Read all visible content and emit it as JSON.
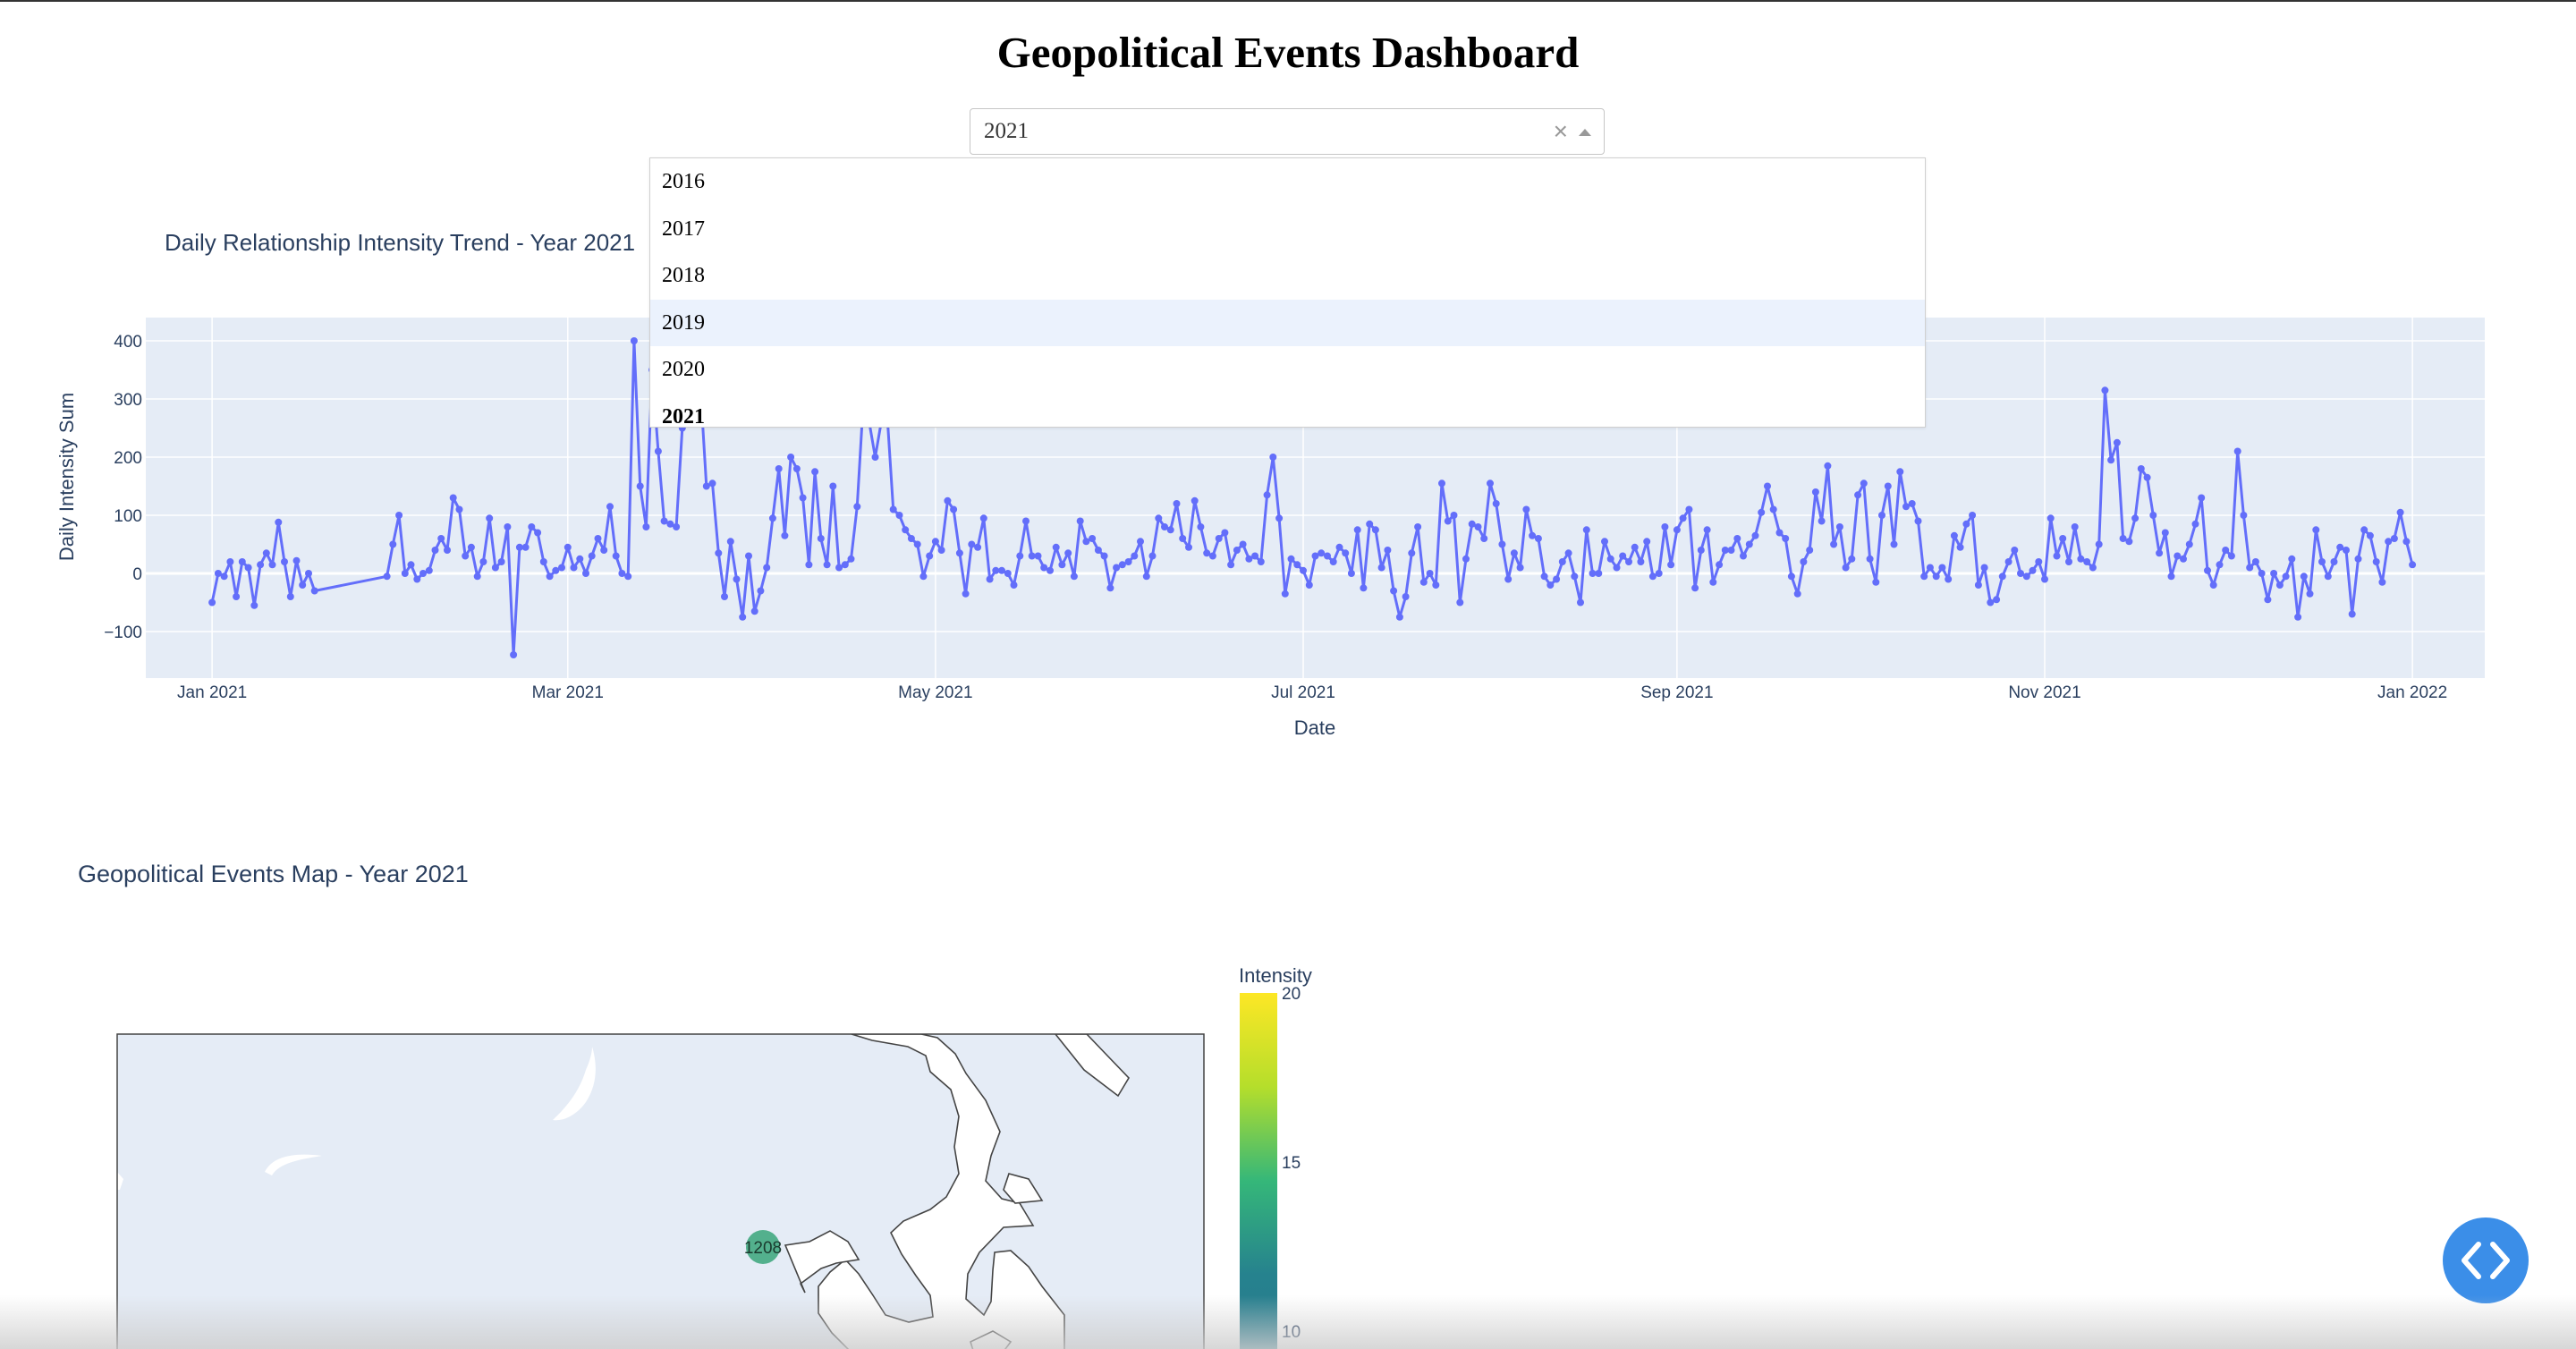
{
  "page": {
    "title": "Geopolitical Events Dashboard"
  },
  "year_select": {
    "value": "2021",
    "clear_symbol": "×",
    "options": [
      {
        "label": "2016",
        "state": "normal"
      },
      {
        "label": "2017",
        "state": "normal"
      },
      {
        "label": "2018",
        "state": "normal"
      },
      {
        "label": "2019",
        "state": "hovered"
      },
      {
        "label": "2020",
        "state": "normal"
      },
      {
        "label": "2021",
        "state": "selected"
      }
    ]
  },
  "colors": {
    "line": "#636efa",
    "plot_bg": "#e5ecf6",
    "land": "#e5ecf6",
    "button": "#3b8ee8"
  },
  "trend_chart": {
    "title": "Daily Relationship Intensity Trend - Year 2021",
    "xlabel": "Date",
    "ylabel": "Daily Intensity Sum",
    "chart_data": {
      "type": "line",
      "title": "Daily Relationship Intensity Trend - Year 2021",
      "xlabel": "Date",
      "ylabel": "Daily Intensity Sum",
      "xlim": [
        "2020-12-21",
        "2022-01-13"
      ],
      "ylim": [
        -180,
        440
      ],
      "x_ticks": [
        {
          "date": "2021-01-01",
          "label": "Jan 2021"
        },
        {
          "date": "2021-03-01",
          "label": "Mar 2021"
        },
        {
          "date": "2021-05-01",
          "label": "May 2021"
        },
        {
          "date": "2021-07-01",
          "label": "Jul 2021"
        },
        {
          "date": "2021-09-01",
          "label": "Sep 2021"
        },
        {
          "date": "2021-11-01",
          "label": "Nov 2021"
        },
        {
          "date": "2022-01-01",
          "label": "Jan 2022"
        }
      ],
      "y_ticks": [
        {
          "value": 400,
          "label": "400"
        },
        {
          "value": 300,
          "label": "300"
        },
        {
          "value": 200,
          "label": "200"
        },
        {
          "value": 100,
          "label": "100"
        },
        {
          "value": 0,
          "label": "0"
        },
        {
          "value": -100,
          "label": "−100"
        }
      ],
      "grid": true,
      "start_date": "2021-01-01",
      "series": [
        {
          "values": [
            -50,
            0,
            -5,
            20,
            -40,
            20,
            10,
            -55,
            15,
            35,
            15,
            88,
            20,
            -40,
            22,
            -20,
            0,
            -30,
            null,
            null,
            null,
            null,
            null,
            null,
            null,
            null,
            null,
            null,
            null,
            -5,
            50,
            100,
            0,
            15,
            -10,
            0,
            5,
            40,
            60,
            40,
            130,
            110,
            30,
            45,
            -5,
            20,
            95,
            10,
            20,
            80,
            -140,
            45,
            45,
            80,
            70,
            20,
            -5,
            5,
            10,
            45,
            10,
            25,
            0,
            30,
            60,
            40,
            115,
            30,
            0,
            -5,
            400,
            150,
            80,
            350,
            210,
            90,
            85,
            80,
            250,
            320,
            260,
            320,
            150,
            155,
            35,
            -40,
            55,
            -10,
            -75,
            30,
            -65,
            -30,
            10,
            95,
            180,
            65,
            200,
            180,
            130,
            15,
            175,
            60,
            15,
            150,
            10,
            15,
            25,
            115,
            290,
            260,
            200,
            260,
            270,
            110,
            100,
            75,
            60,
            50,
            -5,
            30,
            55,
            40,
            125,
            110,
            35,
            -35,
            50,
            45,
            95,
            -10,
            5,
            5,
            0,
            -20,
            30,
            90,
            30,
            30,
            10,
            5,
            45,
            15,
            35,
            -5,
            90,
            55,
            60,
            40,
            30,
            -25,
            10,
            15,
            20,
            30,
            55,
            -5,
            30,
            95,
            80,
            75,
            120,
            60,
            45,
            125,
            80,
            35,
            30,
            60,
            70,
            15,
            40,
            50,
            25,
            30,
            20,
            135,
            200,
            95,
            -35,
            25,
            15,
            5,
            -20,
            30,
            35,
            30,
            20,
            45,
            35,
            0,
            75,
            -25,
            85,
            75,
            10,
            40,
            -30,
            -75,
            -40,
            35,
            80,
            -15,
            0,
            -20,
            155,
            90,
            100,
            -50,
            25,
            85,
            80,
            60,
            155,
            120,
            50,
            -10,
            35,
            10,
            110,
            65,
            60,
            -5,
            -20,
            -10,
            20,
            35,
            -5,
            -50,
            75,
            0,
            0,
            55,
            25,
            10,
            30,
            20,
            45,
            20,
            55,
            -5,
            0,
            80,
            15,
            75,
            95,
            110,
            -25,
            40,
            75,
            -15,
            15,
            40,
            40,
            60,
            30,
            50,
            65,
            105,
            150,
            110,
            70,
            60,
            -5,
            -35,
            20,
            40,
            140,
            90,
            185,
            50,
            80,
            10,
            25,
            135,
            155,
            25,
            -15,
            100,
            150,
            50,
            175,
            115,
            120,
            90,
            -5,
            10,
            -5,
            10,
            -10,
            65,
            45,
            85,
            100,
            -20,
            10,
            -50,
            -45,
            -5,
            20,
            40,
            0,
            -5,
            5,
            20,
            -10,
            95,
            30,
            60,
            20,
            80,
            25,
            20,
            10,
            50,
            315,
            195,
            225,
            60,
            55,
            95,
            180,
            165,
            100,
            35,
            70,
            -5,
            30,
            25,
            50,
            85,
            130,
            5,
            -20,
            15,
            40,
            30,
            210,
            100,
            10,
            20,
            0,
            -45,
            0,
            -20,
            -5,
            25,
            -75,
            -5,
            -35,
            75,
            20,
            -5,
            20,
            45,
            40,
            -70,
            25,
            75,
            65,
            20,
            -15,
            55,
            60,
            105,
            55,
            15
          ]
        }
      ]
    }
  },
  "map_chart": {
    "title": "Geopolitical Events Map - Year 2021",
    "marker_label": "1208",
    "colorbar": {
      "title": "Intensity",
      "ticks": [
        "20",
        "15",
        "10"
      ]
    },
    "chart_data": {
      "type": "scatter",
      "title": "Geopolitical Events Map - Year 2021",
      "points": [
        {
          "label": "1208",
          "intensity": 12.5
        }
      ],
      "colorbar": {
        "title": "Intensity",
        "min": 8,
        "max": 20,
        "ticks": [
          20,
          15,
          10
        ]
      }
    }
  }
}
